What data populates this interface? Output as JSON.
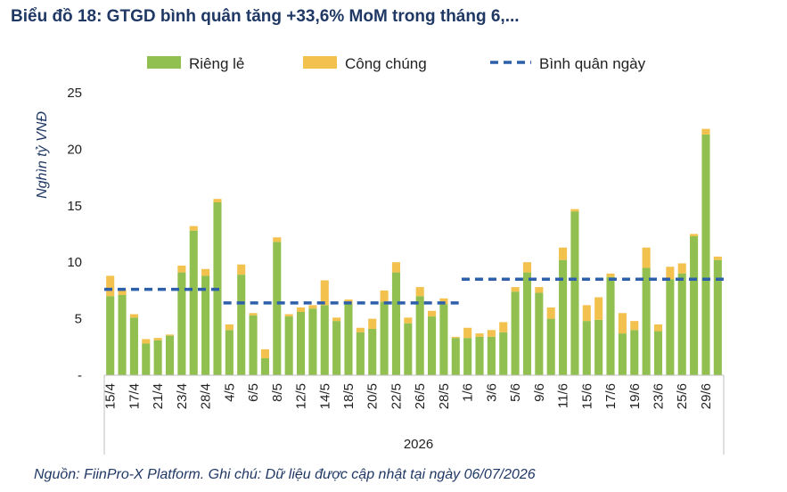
{
  "title": "Biểu đồ 18: GTGD bình quân tăng +33,6% MoM trong tháng 6,...",
  "source": "Nguồn: FiinPro-X Platform. Ghi chú: Dữ liệu được cập nhật tại ngày 06/07/2026",
  "colors": {
    "rieng_le": "#92c050",
    "cong_chung": "#f2c14e",
    "binh_quan": "#2e5faa",
    "title": "#1f3864"
  },
  "chart_data": {
    "type": "bar",
    "stacked": true,
    "ylabel": "Nghìn tỷ VNĐ",
    "xlabel": "2026",
    "ylim": [
      0,
      25
    ],
    "yticks": [
      "-",
      "5",
      "10",
      "15",
      "20",
      "25"
    ],
    "xtick_labels": [
      "15/4",
      "17/4",
      "21/4",
      "23/4",
      "28/4",
      "4/5",
      "6/5",
      "8/5",
      "12/5",
      "14/5",
      "18/5",
      "20/5",
      "22/5",
      "26/5",
      "28/5",
      "1/6",
      "3/6",
      "5/6",
      "9/6",
      "11/6",
      "15/6",
      "17/6",
      "19/6",
      "23/6",
      "25/6",
      "29/6"
    ],
    "legend": [
      "Riêng lẻ",
      "Công chúng",
      "Bình quân ngày"
    ],
    "legend_position": "top",
    "series": [
      {
        "name": "Riêng lẻ",
        "values": [
          7.0,
          7.1,
          5.1,
          2.8,
          3.1,
          3.5,
          9.1,
          12.8,
          8.8,
          15.3,
          4.0,
          8.9,
          5.3,
          1.5,
          11.8,
          5.2,
          5.6,
          5.9,
          6.2,
          4.8,
          6.3,
          3.8,
          4.1,
          6.5,
          9.1,
          4.6,
          7.0,
          5.2,
          6.3,
          3.3,
          3.3,
          3.4,
          3.4,
          3.8,
          7.4,
          9.1,
          7.3,
          5.0,
          10.2,
          14.5,
          4.8,
          4.9,
          8.7,
          3.7,
          4.0,
          9.5,
          3.9,
          8.5,
          9.0,
          12.3,
          21.3,
          10.2
        ]
      },
      {
        "name": "Công chúng",
        "values": [
          1.8,
          0.5,
          0.3,
          0.4,
          0.2,
          0.1,
          0.6,
          0.4,
          0.6,
          0.3,
          0.5,
          0.9,
          0.2,
          0.8,
          0.4,
          0.2,
          0.4,
          0.3,
          2.2,
          0.3,
          0.4,
          0.4,
          0.9,
          1.0,
          0.9,
          0.5,
          0.8,
          0.5,
          0.5,
          0.1,
          0.9,
          0.3,
          0.6,
          0.9,
          0.4,
          0.9,
          0.5,
          1.0,
          1.1,
          0.2,
          1.4,
          2.0,
          0.3,
          1.8,
          0.8,
          1.8,
          0.6,
          1.1,
          0.9,
          0.2,
          0.5,
          0.3
        ]
      },
      {
        "name": "Bình quân ngày",
        "segments": [
          {
            "from": 0,
            "to": 9,
            "value": 7.6
          },
          {
            "from": 10,
            "to": 29,
            "value": 6.4
          },
          {
            "from": 30,
            "to": 51,
            "value": 8.5
          }
        ]
      }
    ]
  }
}
